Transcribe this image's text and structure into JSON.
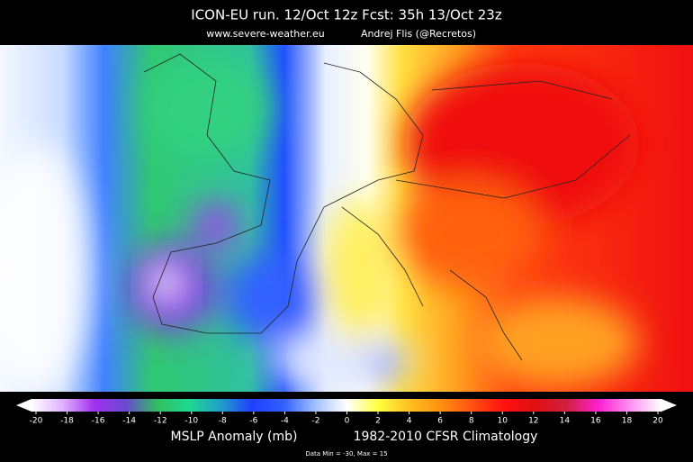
{
  "header": {
    "title": "ICON-EU  run. 12/Oct 12z   Fcst: 35h   13/Oct 23z",
    "source": "www.severe-weather.eu",
    "author": "Andrej Flis (@Recretos)"
  },
  "colorbar": {
    "range": [
      -20,
      20
    ],
    "ticks": [
      -20,
      -18,
      -16,
      -14,
      -12,
      -10,
      -8,
      -6,
      -4,
      -2,
      0,
      2,
      4,
      6,
      8,
      10,
      12,
      14,
      16,
      18,
      20
    ],
    "colors": [
      "#ffffff",
      "#e0b0ff",
      "#a030f0",
      "#6a4ad0",
      "#30c060",
      "#20d890",
      "#20a0c8",
      "#2040ff",
      "#3060ff",
      "#a0c0ff",
      "#ffffff",
      "#ffff40",
      "#ffc020",
      "#ff9010",
      "#ff5010",
      "#ff1010",
      "#e01010",
      "#d02040",
      "#ff20d0",
      "#ff90f0",
      "#ffffff"
    ],
    "label": "MSLP Anomaly (mb)",
    "climatology": "1982-2010 CFSR Climatology"
  },
  "footer": {
    "data_range": "Data Min = -30, Max = 15"
  }
}
